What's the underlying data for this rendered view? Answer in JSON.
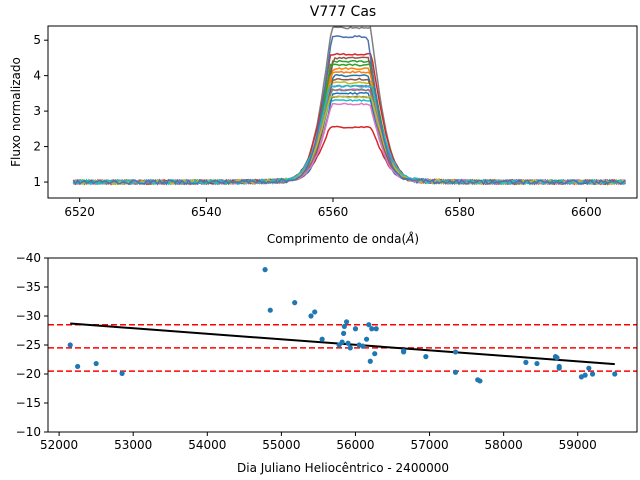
{
  "chart_data": [
    {
      "type": "line",
      "title": "V777 Cas",
      "xlabel": "Comprimento de onda($\\AA$)",
      "ylabel": "Fluxo normalizado",
      "xlim": [
        6515,
        6608
      ],
      "ylim": [
        0.55,
        5.4
      ],
      "xticks": [
        6520,
        6540,
        6560,
        6580,
        6600
      ],
      "yticks": [
        1,
        2,
        3,
        4,
        5
      ],
      "x_range": [
        6519,
        6606.5
      ],
      "grid": false,
      "profile_shape": "double-peaked H-alpha emission centered near 6563",
      "series": [
        {
          "color": "#1f77b4",
          "peak_blue": 3.6,
          "peak_red": 3.9
        },
        {
          "color": "#ff7f0e",
          "peak_blue": 3.7,
          "peak_red": 4.1
        },
        {
          "color": "#2ca02c",
          "peak_blue": 3.8,
          "peak_red": 4.3
        },
        {
          "color": "#d62728",
          "peak_blue": 2.4,
          "peak_red": 2.45
        },
        {
          "color": "#9467bd",
          "peak_blue": 3.3,
          "peak_red": 3.6
        },
        {
          "color": "#8c564b",
          "peak_blue": 4.0,
          "peak_red": 4.4
        },
        {
          "color": "#e377c2",
          "peak_blue": 3.4,
          "peak_red": 3.5
        },
        {
          "color": "#7f7f7f",
          "peak_blue": 4.8,
          "peak_red": 5.25
        },
        {
          "color": "#bcbd22",
          "peak_blue": 3.5,
          "peak_red": 3.7
        },
        {
          "color": "#17becf",
          "peak_blue": 3.0,
          "peak_red": 3.2
        },
        {
          "color": "#1f77b4",
          "peak_blue": 3.2,
          "peak_red": 3.4
        },
        {
          "color": "#ff7f0e",
          "peak_blue": 3.9,
          "peak_red": 4.0
        },
        {
          "color": "#2ca02c",
          "peak_blue": 4.1,
          "peak_red": 4.2
        },
        {
          "color": "#d62728",
          "peak_blue": 4.2,
          "peak_red": 4.5
        },
        {
          "color": "#9467bd",
          "peak_blue": 3.1,
          "peak_red": 3.3
        },
        {
          "color": "#8c564b",
          "peak_blue": 3.6,
          "peak_red": 3.8
        },
        {
          "color": "#e377c2",
          "peak_blue": 3.0,
          "peak_red": 3.1
        },
        {
          "color": "#7f7f7f",
          "peak_blue": 3.3,
          "peak_red": 3.5
        },
        {
          "color": "#bcbd22",
          "peak_blue": 3.2,
          "peak_red": 3.3
        },
        {
          "color": "#17becf",
          "peak_blue": 3.4,
          "peak_red": 3.6
        },
        {
          "color": "#4c72b0",
          "peak_blue": 5.0,
          "peak_red": 4.6
        }
      ]
    },
    {
      "type": "scatter",
      "title": "",
      "xlabel": "Dia Juliano Heliocêntrico - 2400000",
      "ylabel": "",
      "xlim": [
        51850,
        59800
      ],
      "ylim": [
        -10,
        -40
      ],
      "y_inverted": true,
      "xticks": [
        52000,
        53000,
        54000,
        55000,
        56000,
        57000,
        58000,
        59000
      ],
      "yticks": [
        -40,
        -35,
        -30,
        -25,
        -20,
        -15,
        -10
      ],
      "point_color": "#1f77b4",
      "points": [
        [
          52150,
          -25.0
        ],
        [
          52250,
          -21.3
        ],
        [
          52500,
          -21.8
        ],
        [
          52850,
          -20.1
        ],
        [
          54780,
          -38.0
        ],
        [
          54850,
          -31.0
        ],
        [
          55180,
          -32.3
        ],
        [
          55400,
          -30.0
        ],
        [
          55450,
          -30.7
        ],
        [
          55550,
          -26.0
        ],
        [
          55780,
          -25.0
        ],
        [
          55820,
          -25.5
        ],
        [
          55840,
          -27.0
        ],
        [
          55850,
          -28.2
        ],
        [
          55880,
          -29.0
        ],
        [
          55900,
          -25.3
        ],
        [
          55930,
          -24.5
        ],
        [
          56000,
          -27.8
        ],
        [
          56050,
          -25.0
        ],
        [
          56100,
          -24.8
        ],
        [
          56150,
          -26.0
        ],
        [
          56180,
          -28.5
        ],
        [
          56200,
          -22.2
        ],
        [
          56220,
          -27.8
        ],
        [
          56260,
          -23.5
        ],
        [
          56280,
          -27.8
        ],
        [
          56650,
          -24.0
        ],
        [
          56650,
          -23.8
        ],
        [
          56950,
          -23.0
        ],
        [
          57350,
          -23.8
        ],
        [
          57350,
          -20.3
        ],
        [
          57650,
          -19.0
        ],
        [
          57680,
          -18.8
        ],
        [
          58300,
          -22.0
        ],
        [
          58450,
          -21.8
        ],
        [
          58700,
          -23.0
        ],
        [
          58720,
          -22.8
        ],
        [
          58750,
          -21.0
        ],
        [
          58750,
          -21.3
        ],
        [
          59050,
          -19.5
        ],
        [
          59100,
          -19.8
        ],
        [
          59150,
          -21.0
        ],
        [
          59200,
          -20.0
        ],
        [
          59500,
          -20.0
        ]
      ],
      "fit_line": {
        "x": [
          52150,
          59500
        ],
        "y": [
          -28.7,
          -21.7
        ],
        "color": "#000000"
      },
      "hlines": [
        {
          "y": -28.5,
          "color": "#ff0000",
          "style": "dashed"
        },
        {
          "y": -24.5,
          "color": "#ff0000",
          "style": "dashed"
        },
        {
          "y": -20.5,
          "color": "#ff0000",
          "style": "dashed"
        }
      ]
    }
  ]
}
